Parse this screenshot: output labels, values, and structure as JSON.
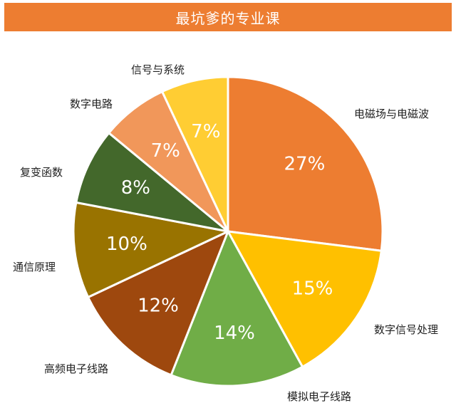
{
  "header": {
    "title": "最坑爹的专业课"
  },
  "chart_data": {
    "type": "pie",
    "title": "最坑爹的专业课",
    "slices": [
      {
        "label": "电磁场与电磁波",
        "value": 27,
        "value_label": "27%",
        "color": "#ed7d31"
      },
      {
        "label": "数字信号处理",
        "value": 15,
        "value_label": "15%",
        "color": "#ffc000"
      },
      {
        "label": "模拟电子线路",
        "value": 14,
        "value_label": "14%",
        "color": "#70ad47"
      },
      {
        "label": "高频电子线路",
        "value": 12,
        "value_label": "12%",
        "color": "#9e480e"
      },
      {
        "label": "通信原理",
        "value": 10,
        "value_label": "10%",
        "color": "#997300"
      },
      {
        "label": "复变函数",
        "value": 8,
        "value_label": "8%",
        "color": "#43682b"
      },
      {
        "label": "数字电路",
        "value": 7,
        "value_label": "7%",
        "color": "#f1975a"
      },
      {
        "label": "信号与系统",
        "value": 7,
        "value_label": "7%",
        "color": "#ffcd33"
      }
    ],
    "legend": "none"
  }
}
